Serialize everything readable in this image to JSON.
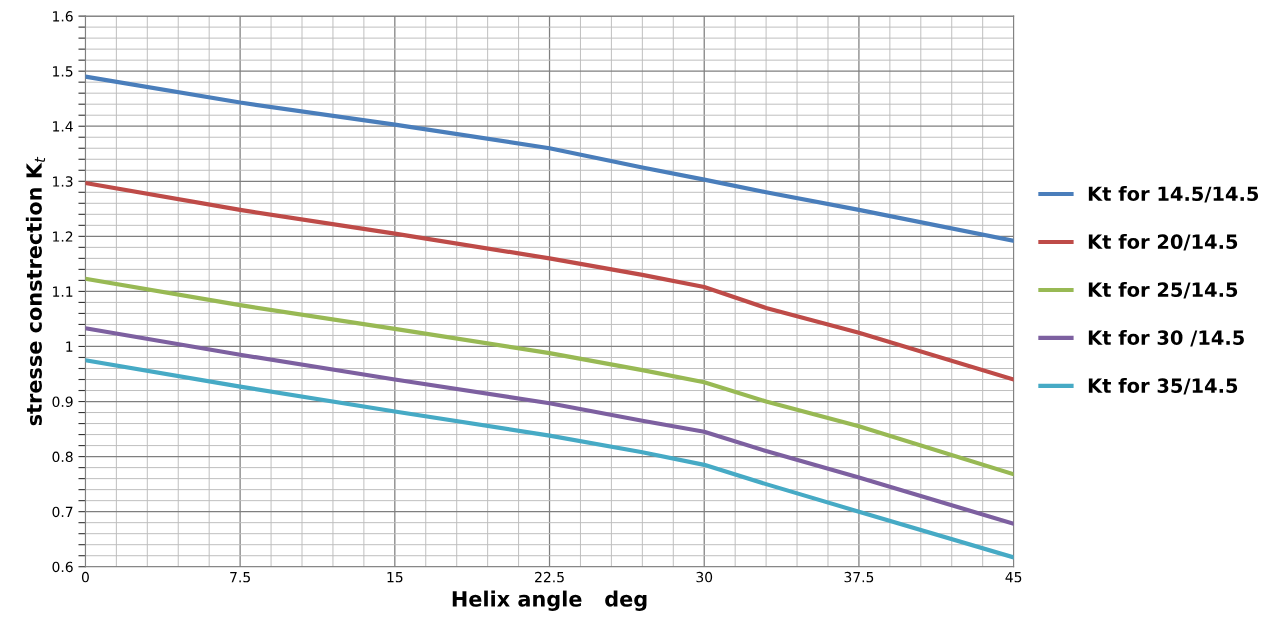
{
  "chart_data": {
    "type": "line",
    "xlabel": "Helix angle   deg",
    "ylabel": "stresse constrection K$_{t}$",
    "x": [
      0,
      7.5,
      15,
      22.5,
      27,
      30,
      33,
      37.5,
      45
    ],
    "series": [
      {
        "name": "Kt for 14.5/14.5",
        "color": "#4a7ebb",
        "values": [
          1.49,
          1.443,
          1.403,
          1.36,
          1.325,
          1.303,
          1.28,
          1.248,
          1.192
        ]
      },
      {
        "name": "Kt for 20/14.5",
        "color": "#be4b48",
        "values": [
          1.297,
          1.248,
          1.205,
          1.16,
          1.13,
          1.108,
          1.07,
          1.025,
          0.94
        ]
      },
      {
        "name": "Kt for 25/14.5",
        "color": "#98b954",
        "values": [
          1.123,
          1.075,
          1.032,
          0.988,
          0.957,
          0.935,
          0.9,
          0.855,
          0.768
        ]
      },
      {
        "name": "Kt for 30 /14.5",
        "color": "#7d60a0",
        "values": [
          1.033,
          0.985,
          0.94,
          0.897,
          0.865,
          0.845,
          0.81,
          0.762,
          0.678
        ]
      },
      {
        "name": "Kt for 35/14.5",
        "color": "#46aac5",
        "values": [
          0.975,
          0.927,
          0.882,
          0.838,
          0.808,
          0.785,
          0.75,
          0.7,
          0.617
        ]
      }
    ],
    "xlim": [
      0,
      45
    ],
    "xticks": [
      0,
      {
        "value": 1.5,
        "label": null
      },
      {
        "value": 3,
        "label": null
      },
      {
        "value": 4.5,
        "label": null
      },
      {
        "value": 6,
        "label": null
      },
      7.5,
      {
        "value": 9,
        "label": null
      },
      {
        "value": 10.5,
        "label": null
      },
      {
        "value": 12,
        "label": null
      },
      {
        "value": 13.5,
        "label": null
      },
      15,
      {
        "value": 16.5,
        "label": null
      },
      {
        "value": 18,
        "label": null
      },
      {
        "value": 19.5,
        "label": null
      },
      {
        "value": 21,
        "label": null
      },
      22.5,
      {
        "value": 24,
        "label": null
      },
      {
        "value": 25.5,
        "label": null
      },
      {
        "value": 27,
        "label": null
      },
      {
        "value": 28.5,
        "label": null
      },
      30,
      {
        "value": 31.5,
        "label": null
      },
      {
        "value": 33,
        "label": null
      },
      {
        "value": 34.5,
        "label": null
      },
      {
        "value": 36,
        "label": null
      },
      37.5,
      {
        "value": 39,
        "label": null
      },
      {
        "value": 40.5,
        "label": null
      },
      {
        "value": 42,
        "label": null
      },
      {
        "value": 43.5,
        "label": null
      },
      45
    ],
    "ylim": [
      0.6,
      1.6
    ],
    "yticks": [
      0.6,
      {
        "value": 0.62,
        "label": null
      },
      {
        "value": 0.64,
        "label": null
      },
      {
        "value": 0.66,
        "label": null
      },
      {
        "value": 0.68,
        "label": null
      },
      0.7,
      {
        "value": 0.72,
        "label": null
      },
      {
        "value": 0.74,
        "label": null
      },
      {
        "value": 0.76,
        "label": null
      },
      {
        "value": 0.78,
        "label": null
      },
      0.8,
      {
        "value": 0.82,
        "label": null
      },
      {
        "value": 0.84,
        "label": null
      },
      {
        "value": 0.86,
        "label": null
      },
      {
        "value": 0.88,
        "label": null
      },
      0.9,
      {
        "value": 0.92,
        "label": null
      },
      {
        "value": 0.94,
        "label": null
      },
      {
        "value": 0.96,
        "label": null
      },
      {
        "value": 0.98,
        "label": null
      },
      1,
      {
        "value": 1.02,
        "label": null
      },
      {
        "value": 1.04,
        "label": null
      },
      {
        "value": 1.06,
        "label": null
      },
      {
        "value": 1.08,
        "label": null
      },
      1.1,
      {
        "value": 1.12,
        "label": null
      },
      {
        "value": 1.14,
        "label": null
      },
      {
        "value": 1.16,
        "label": null
      },
      {
        "value": 1.18,
        "label": null
      },
      1.2,
      {
        "value": 1.22,
        "label": null
      },
      {
        "value": 1.24,
        "label": null
      },
      {
        "value": 1.26,
        "label": null
      },
      {
        "value": 1.28,
        "label": null
      },
      1.3,
      {
        "value": 1.32,
        "label": null
      },
      {
        "value": 1.34,
        "label": null
      },
      {
        "value": 1.36,
        "label": null
      },
      {
        "value": 1.38,
        "label": null
      },
      1.4,
      {
        "value": 1.42,
        "label": null
      },
      {
        "value": 1.44,
        "label": null
      },
      {
        "value": 1.46,
        "label": null
      },
      {
        "value": 1.48,
        "label": null
      },
      1.5,
      {
        "value": 1.52,
        "label": null
      },
      {
        "value": 1.54,
        "label": null
      },
      {
        "value": 1.56,
        "label": null
      },
      {
        "value": 1.58,
        "label": null
      },
      1.6
    ],
    "grid": true,
    "legend": "right",
    "marker": "none",
    "line_style": "solid"
  }
}
